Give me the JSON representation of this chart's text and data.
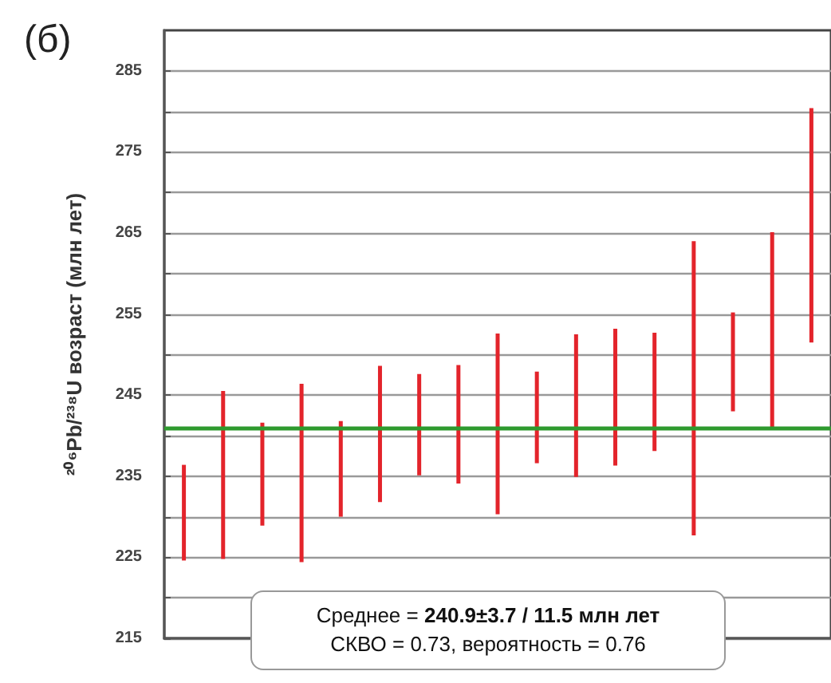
{
  "chart_data": {
    "type": "bar",
    "title": "(б)",
    "ylabel": "²⁰⁶Pb/²³⁸U возраст (млн лет)",
    "categories": [
      null,
      null,
      null,
      null,
      null,
      null,
      null,
      null,
      null,
      null,
      null,
      null,
      null,
      null,
      null,
      null,
      null
    ],
    "series": [
      {
        "color": "#e3242b",
        "base": [
          224.6,
          224.8,
          228.9,
          224.4,
          230.0,
          231.8,
          235.1,
          234.1,
          230.3,
          236.6,
          234.9,
          236.3,
          238.1,
          227.7,
          243.0,
          241.0,
          251.5
        ],
        "values": [
          11.8,
          20.7,
          12.7,
          22.0,
          11.8,
          16.8,
          12.5,
          14.6,
          22.3,
          11.3,
          17.6,
          16.9,
          14.6,
          36.3,
          12.2,
          24.1,
          28.9
        ]
      }
    ],
    "ylim": [
      215,
      290
    ],
    "yticks": [
      215,
      {
        "value": 220,
        "label": null
      },
      225,
      {
        "value": 230,
        "label": null
      },
      235,
      {
        "value": 240,
        "label": null
      },
      245,
      {
        "value": 250,
        "label": null
      },
      255,
      {
        "value": 260,
        "label": null
      },
      265,
      {
        "value": 270,
        "label": null
      },
      275,
      {
        "value": 280,
        "label": null
      },
      285
    ],
    "grid": "y",
    "ref_lines": [
      {
        "axis": "y",
        "value": 240.9,
        "color": "#2e9a2e",
        "line_style": "solid"
      }
    ],
    "annotations": [
      "Среднее = 240.9±3.7 / 11.5 млн лет",
      "СКВО = 0.73, вероятность = 0.76"
    ]
  }
}
